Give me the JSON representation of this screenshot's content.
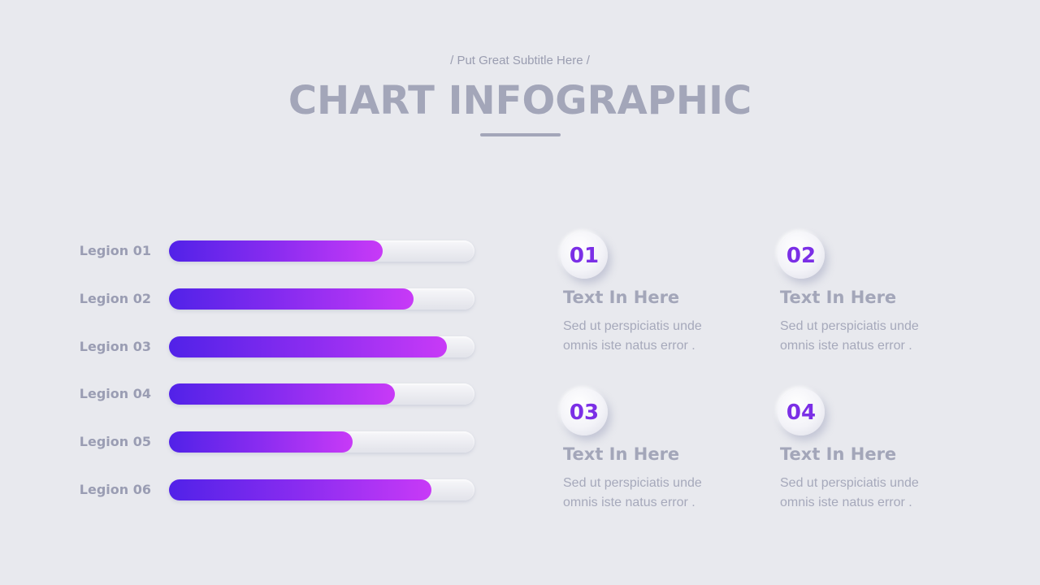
{
  "header": {
    "subtitle": "/ Put Great Subtitle Here /",
    "title": "CHART INFOGRAPHIC"
  },
  "chart_data": {
    "type": "bar",
    "orientation": "horizontal",
    "categories": [
      "Legion 01",
      "Legion 02",
      "Legion 03",
      "Legion 04",
      "Legion 05",
      "Legion 06"
    ],
    "values": [
      70,
      80,
      91,
      74,
      60,
      86
    ],
    "xlim": [
      0,
      100
    ],
    "title": "",
    "xlabel": "",
    "ylabel": "",
    "grid": false,
    "colors": {
      "fill_start": "#5122e8",
      "fill_end": "#c83af7",
      "track": "#eceef3"
    }
  },
  "info_items": [
    {
      "number": "01",
      "heading": "Text In Here",
      "body": "Sed ut perspiciatis unde omnis iste natus error ."
    },
    {
      "number": "02",
      "heading": "Text In Here",
      "body": "Sed ut perspiciatis unde omnis iste natus error ."
    },
    {
      "number": "03",
      "heading": "Text In Here",
      "body": "Sed ut perspiciatis unde omnis iste natus error ."
    },
    {
      "number": "04",
      "heading": "Text In Here",
      "body": "Sed ut perspiciatis unde omnis iste natus error ."
    }
  ],
  "colors": {
    "background": "#e8e9ee",
    "title": "#a3a6b9",
    "accent": "#7b2fe6"
  }
}
